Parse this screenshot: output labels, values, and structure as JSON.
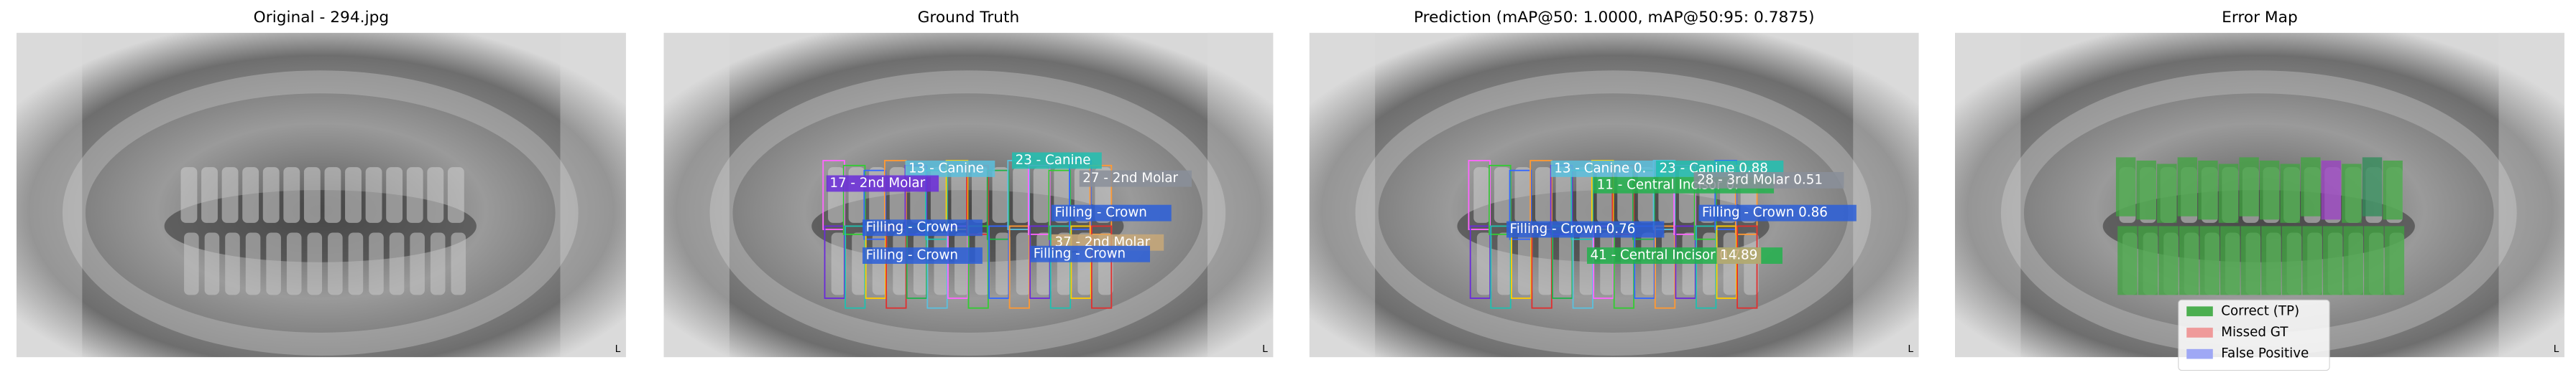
{
  "panels": [
    {
      "title": "Original - 294.jpg",
      "labels": []
    },
    {
      "title": "Ground Truth",
      "labels": [
        {
          "text": "13 - Canine",
          "color": "#5bc0de"
        },
        {
          "text": "23 - Canine",
          "color": "#20c0b0"
        },
        {
          "text": "17 - 2nd Molar",
          "color": "#6a2bd9"
        },
        {
          "text": "27 - 2nd Molar",
          "color": "#8a8f9a"
        },
        {
          "text": "Filling - Crown",
          "color": "#2b5fd9"
        },
        {
          "text": "Filling - Crown",
          "color": "#2b5fd9"
        },
        {
          "text": "37 - 2nd Molar",
          "color": "#c8a878"
        },
        {
          "text": "Filling - Crown",
          "color": "#2b5fd9"
        },
        {
          "text": "Filling - Crown",
          "color": "#2b5fd9"
        }
      ]
    },
    {
      "title": "Prediction (mAP@50: 1.0000, mAP@50:95: 0.7875)",
      "labels": [
        {
          "text": "13 - Canine 0.",
          "color": "#5bc0de"
        },
        {
          "text": "23 - Canine 0.88",
          "color": "#20c0b0"
        },
        {
          "text": "11 - Central Incisor 0.",
          "color": "#22b14c"
        },
        {
          "text": "28 - 3rd Molar 0.51",
          "color": "#8a8f9a"
        },
        {
          "text": "Filling - Crown 0.86",
          "color": "#2b5fd9"
        },
        {
          "text": "Filling - Crown 0.76",
          "color": "#2b5fd9"
        },
        {
          "text": "41 - Central Incisor 0.78",
          "color": "#22b14c"
        },
        {
          "text": "14.89",
          "color": "#c8a878"
        }
      ]
    },
    {
      "title": "Error Map",
      "labels": []
    }
  ],
  "legend": [
    {
      "text": "Correct (TP)",
      "color": "#4caf50"
    },
    {
      "text": "Missed GT",
      "color": "#ef9a9a"
    },
    {
      "text": "False Positive",
      "color": "#9fa8f5"
    }
  ]
}
